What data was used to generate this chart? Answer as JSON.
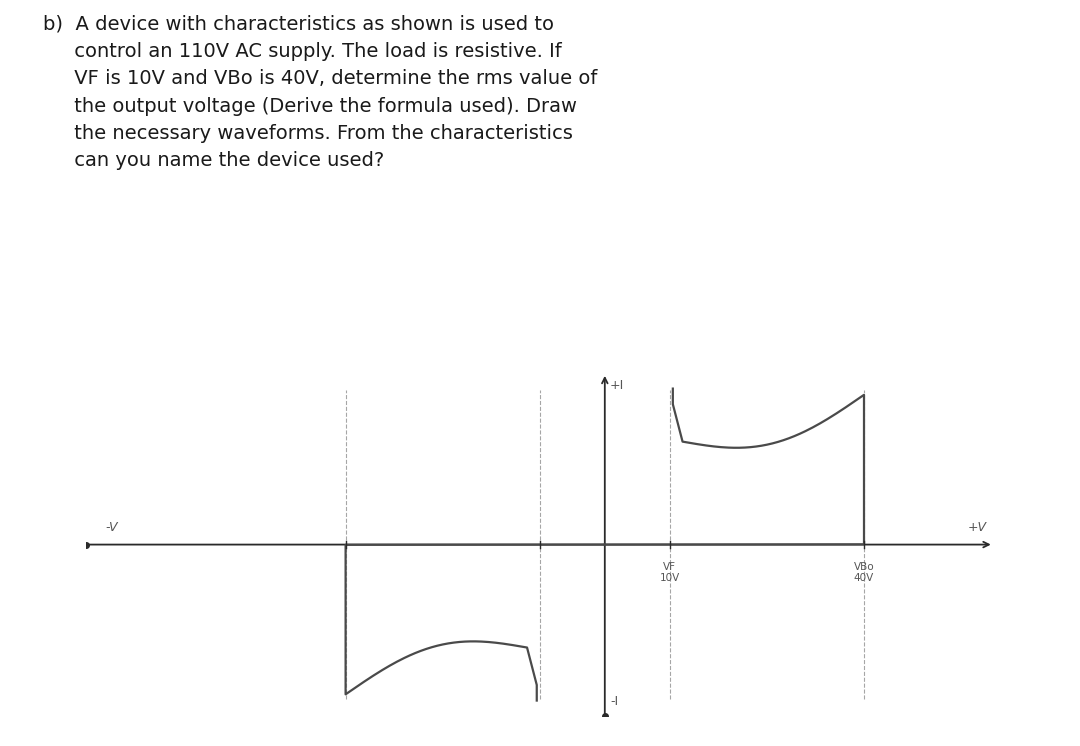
{
  "background_color": "#ffffff",
  "curve_color": "#4a4a4a",
  "axis_color": "#2a2a2a",
  "text_color": "#1a1a1a",
  "label_color": "#555555",
  "question_line1": "b)  A device with characteristics as shown is used to",
  "question_line2": "     control an 110V AC supply. The load is resistive. If",
  "question_line3": "     VF is 10V and VBo is 40V, determine the rms value of",
  "question_line4": "     the output voltage (Derive the formula used). Draw",
  "question_line5": "     the necessary waveforms. From the characteristics",
  "question_line6": "     can you name the device used?",
  "fig_width": 10.8,
  "fig_height": 7.46,
  "dpi": 100,
  "xlim": [
    -80,
    60
  ],
  "ylim": [
    -5.5,
    5.5
  ],
  "VF_x": 10,
  "VBo_x": 40,
  "axis_origin_x": 0,
  "label_neg_V": "-V",
  "label_pos_V": "+V",
  "label_pos_I": "+I",
  "label_neg_I": "-I",
  "label_VF": "VF\n10V",
  "label_VBo": "VBo\n40V",
  "lw_curve": 1.6,
  "lw_axis": 1.3
}
